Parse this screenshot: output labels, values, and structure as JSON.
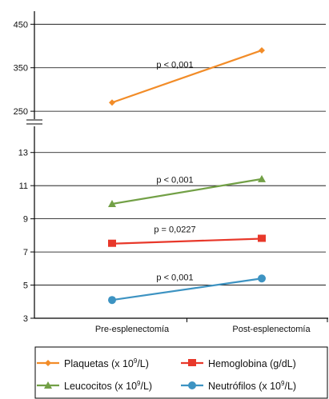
{
  "chart_data": {
    "type": "line",
    "categories": [
      "Pre-esplenectomía",
      "Post-esplenectomía"
    ],
    "panels": {
      "upper": {
        "ylim": [
          230,
          480
        ],
        "ticks": [
          "450",
          "350",
          "250"
        ]
      },
      "lower": {
        "ylim": [
          3,
          14
        ],
        "ticks": [
          "13",
          "11",
          "9",
          "7",
          "5",
          "3"
        ]
      }
    },
    "axis_break": true,
    "grid": true,
    "legend_position": "bottom",
    "series": [
      {
        "key": "plaquetas",
        "name": "Plaquetas (x 10",
        "sup": "9",
        "unit": "/L)",
        "color": "#f28c28",
        "marker": "diamond",
        "panel": "upper",
        "values": [
          270,
          390
        ],
        "p": "p < 0,001"
      },
      {
        "key": "hemoglobina",
        "name": "Hemoglobina (g/dL)",
        "sup": "",
        "unit": "",
        "color": "#e8382a",
        "marker": "square",
        "panel": "lower",
        "values": [
          7.5,
          7.8
        ],
        "p": "p = 0,0227"
      },
      {
        "key": "leucocitos",
        "name": "Leucocitos (x 10",
        "sup": "9",
        "unit": "/L)",
        "color": "#72a046",
        "marker": "triangle",
        "panel": "lower",
        "values": [
          9.9,
          11.4
        ],
        "p": "p < 0,001"
      },
      {
        "key": "neutrofilos",
        "name": "Neutrófilos (x 10",
        "sup": "9",
        "unit": "/L)",
        "color": "#3d93c2",
        "marker": "circle",
        "panel": "lower",
        "values": [
          4.1,
          5.4
        ],
        "p": "p < 0,001"
      }
    ]
  }
}
